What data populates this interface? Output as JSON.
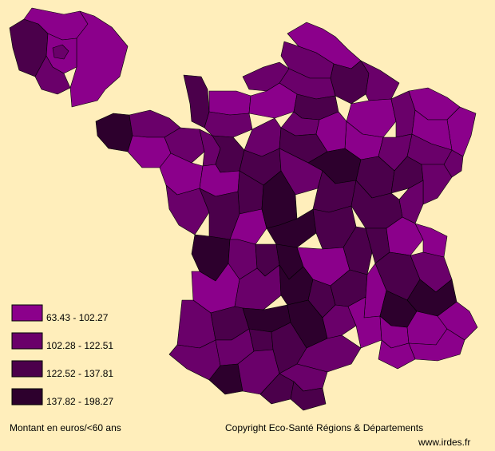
{
  "palette": {
    "background": "#ffeebb",
    "class1": "#8b008b",
    "class2": "#6a006a",
    "class3": "#4b004b",
    "class4": "#2d002d",
    "border": "#000000"
  },
  "legend": {
    "classes": [
      {
        "label": "63.43 - 102.27",
        "color": "#8b008b"
      },
      {
        "label": "102.28 - 122.51",
        "color": "#6a006a"
      },
      {
        "label": "122.52 - 137.81",
        "color": "#4b004b"
      },
      {
        "label": "137.82 - 198.27",
        "color": "#2d002d"
      }
    ]
  },
  "footer": {
    "unit_label": "Montant en euros/<60 ans",
    "copyright": "Copyright Eco-Santé Régions & Départements",
    "website": "www.irdes.fr"
  }
}
